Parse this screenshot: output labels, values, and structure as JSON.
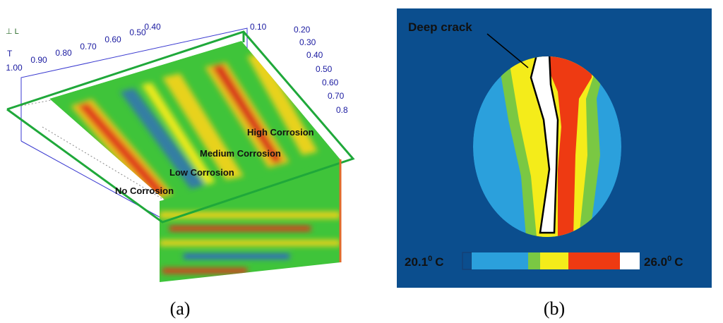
{
  "panel_a": {
    "axis_letter": "T",
    "left_ticks": [
      "1.00",
      "0.90",
      "0.80",
      "0.70",
      "0.60",
      "0.50",
      "0.40"
    ],
    "right_ticks": [
      "0.10",
      "0.20",
      "0.30",
      "0.40",
      "0.50",
      "0.60",
      "0.70",
      "0.8"
    ],
    "labels": [
      "High Corrosion",
      "Medium Corrosion",
      "Low Corrosion",
      "No Corrosion"
    ],
    "caption": "(a)"
  },
  "panel_b": {
    "callout": "Deep crack",
    "scale_min": "20.1",
    "scale_max": "26.0",
    "degree": "0",
    "unit": "C",
    "caption": "(b)"
  }
}
